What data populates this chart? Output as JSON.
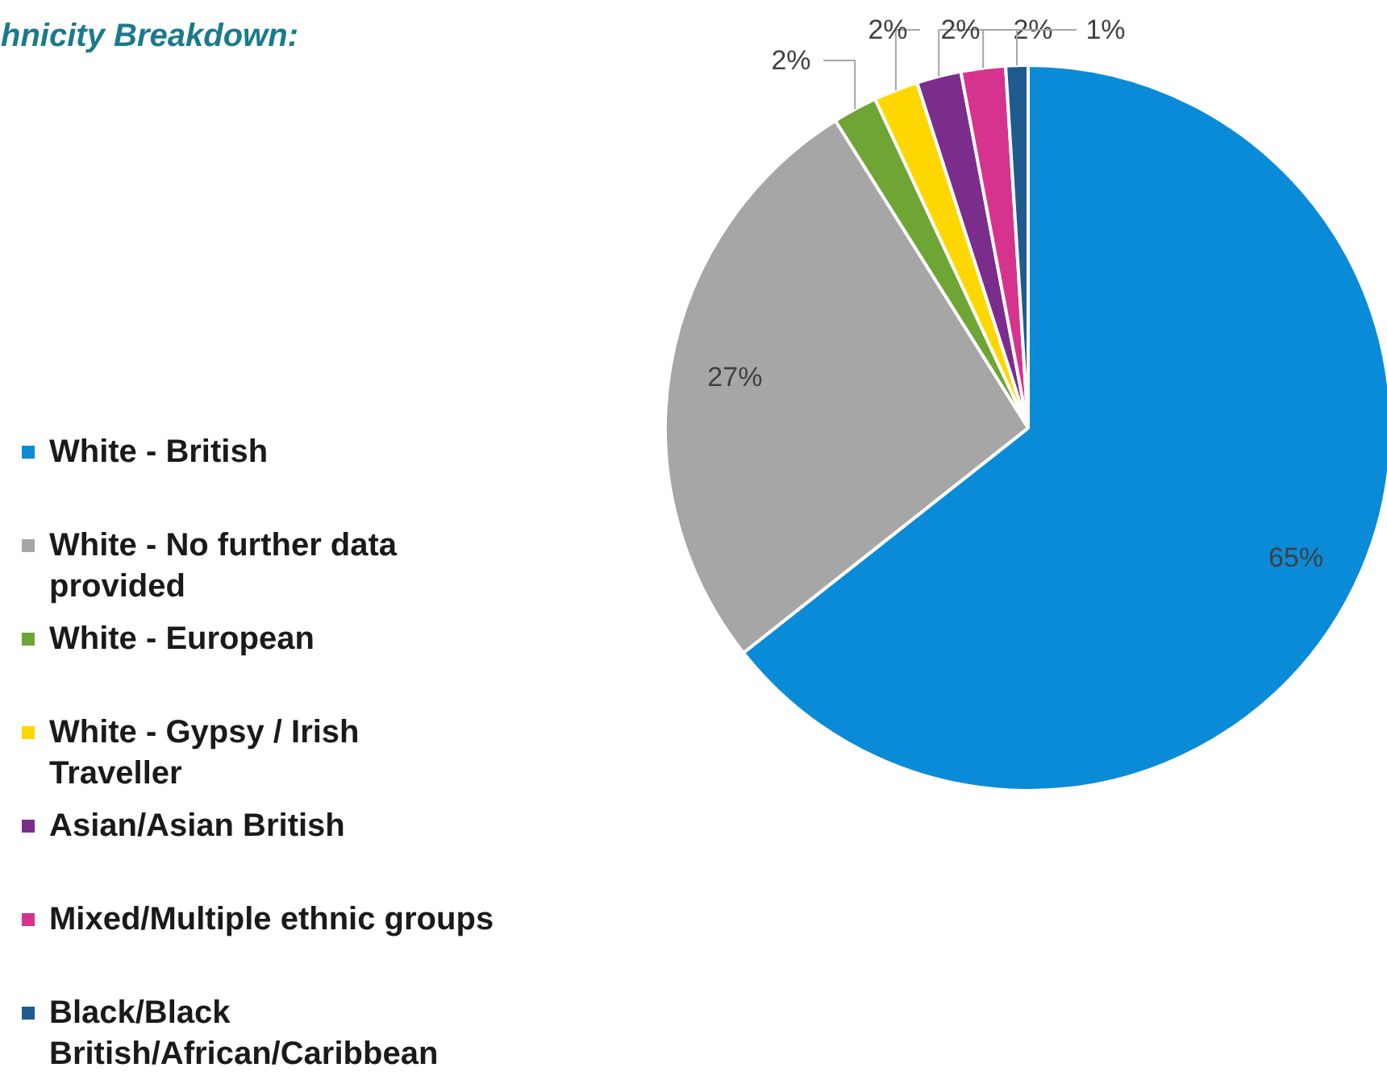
{
  "chart_data": {
    "type": "pie",
    "title": "hnicity Breakdown:",
    "categories": [
      "White - British",
      "White - No further data provided",
      "White - European",
      "White - Gypsy / Irish Traveller",
      "Asian/Asian British",
      "Mixed/Multiple ethnic groups",
      "Black/Black British/African/Caribbean"
    ],
    "values": [
      65,
      27,
      2,
      2,
      2,
      2,
      1
    ],
    "value_labels": [
      "65%",
      "27%",
      "2%",
      "2%",
      "2%",
      "2%",
      "1%"
    ],
    "colors": [
      "#0a8bd8",
      "#a6a6a6",
      "#6ea534",
      "#ffd700",
      "#7b2d8b",
      "#d6338f",
      "#1f5b8e"
    ],
    "legend": "left"
  }
}
